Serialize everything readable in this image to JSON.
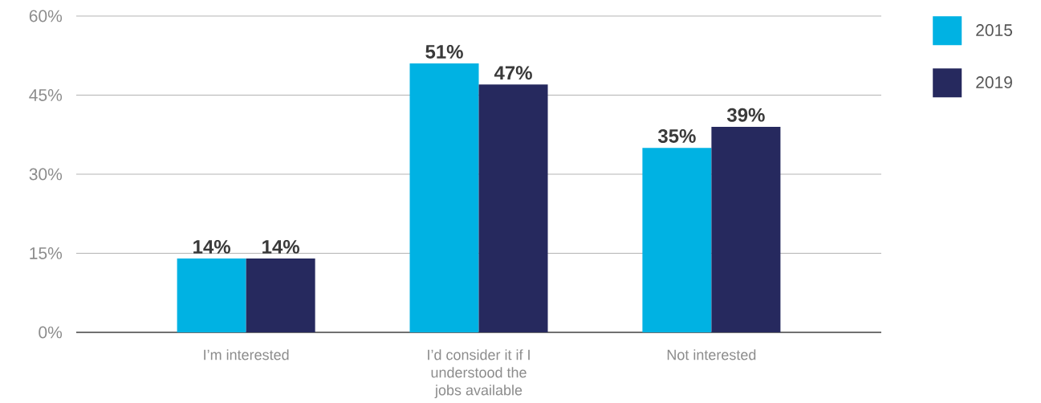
{
  "chart_data": {
    "type": "bar",
    "categories": [
      "I’m interested",
      "I’d consider it if I understood the jobs available",
      "Not interested"
    ],
    "series": [
      {
        "name": "2015",
        "color": "#00b2e3",
        "values": [
          14,
          51,
          35
        ],
        "value_labels": [
          "14%",
          "51%",
          "35%"
        ]
      },
      {
        "name": "2019",
        "color": "#26295e",
        "values": [
          14,
          47,
          39
        ],
        "value_labels": [
          "14%",
          "47%",
          "39%"
        ]
      }
    ],
    "ylim": [
      0,
      60
    ],
    "yticks": [
      {
        "value": 0,
        "label": "0%"
      },
      {
        "value": 15,
        "label": "15%"
      },
      {
        "value": 30,
        "label": "30%"
      },
      {
        "value": 45,
        "label": "45%"
      },
      {
        "value": 60,
        "label": "60%"
      }
    ],
    "grid": "y",
    "legend": "top right"
  }
}
